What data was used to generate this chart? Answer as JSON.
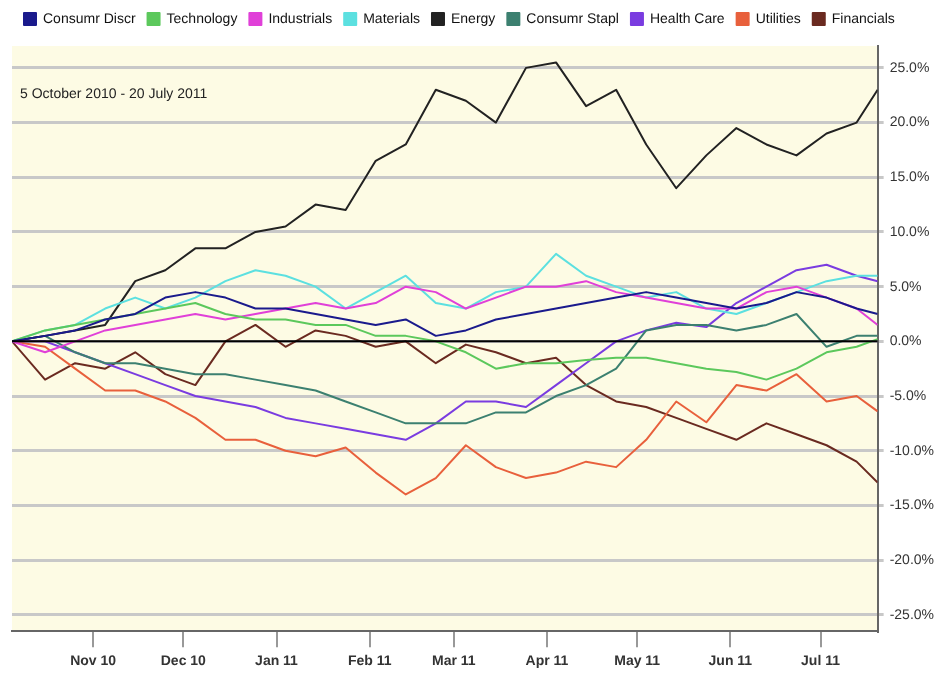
{
  "chart_data": {
    "type": "line",
    "subtitle": "5 October 2010 - 20 July 2011",
    "x": [
      "2010-10-05",
      "2010-10-16",
      "2010-10-26",
      "2010-11-05",
      "2010-11-15",
      "2010-11-25",
      "2010-12-05",
      "2010-12-15",
      "2010-12-25",
      "2011-01-04",
      "2011-01-14",
      "2011-01-24",
      "2011-02-03",
      "2011-02-13",
      "2011-02-23",
      "2011-03-05",
      "2011-03-15",
      "2011-03-25",
      "2011-04-04",
      "2011-04-14",
      "2011-04-24",
      "2011-05-04",
      "2011-05-14",
      "2011-05-24",
      "2011-06-03",
      "2011-06-13",
      "2011-06-23",
      "2011-07-03",
      "2011-07-13",
      "2011-07-20"
    ],
    "series": [
      {
        "color": "#000000",
        "values": [
          0,
          0,
          0,
          0,
          0,
          0,
          0,
          0,
          0,
          0,
          0,
          0,
          0,
          0,
          0,
          0,
          0,
          0,
          0,
          0,
          0,
          0,
          0,
          0,
          0,
          0,
          0,
          0,
          0,
          0
        ]
      },
      {
        "name": "Consumr Discr",
        "color": "#1a1a8c",
        "values": [
          0,
          0.5,
          1,
          2,
          2.5,
          4,
          4.5,
          4,
          3,
          3,
          2.5,
          2,
          1.5,
          2,
          0.5,
          1,
          2,
          2.5,
          3,
          3.5,
          4,
          4.5,
          4,
          3.5,
          3,
          3.5,
          4.5,
          4,
          3,
          2.5
        ]
      },
      {
        "name": "Technology",
        "color": "#5cc85c",
        "values": [
          0,
          1,
          1.5,
          2,
          2.5,
          3,
          3.5,
          2.5,
          2,
          2,
          1.5,
          1.5,
          0.5,
          0.5,
          0,
          -1,
          -2.5,
          -2,
          -2,
          -1.7,
          -1.5,
          -1.5,
          -2,
          -2.5,
          -2.8,
          -3.5,
          -2.5,
          -1,
          -0.5,
          0.2
        ]
      },
      {
        "name": "Industrials",
        "color": "#e040d8",
        "values": [
          0,
          -1,
          0,
          1,
          1.5,
          2,
          2.5,
          2,
          2.5,
          3,
          3.5,
          3,
          3.5,
          5,
          4.5,
          3,
          4,
          5,
          5,
          5.5,
          4.5,
          4,
          3.5,
          3,
          3,
          4.5,
          5,
          4,
          3,
          1.5
        ]
      },
      {
        "name": "Materials",
        "color": "#5ce0e0",
        "values": [
          0,
          1,
          1.5,
          3,
          4,
          3,
          4,
          5.5,
          6.5,
          6,
          5,
          3,
          4.5,
          6,
          3.5,
          3,
          4.5,
          5,
          8,
          6,
          5,
          4,
          4.5,
          3,
          2.5,
          3.5,
          4.5,
          5.5,
          6,
          6
        ]
      },
      {
        "name": "Energy",
        "color": "#222222",
        "values": [
          0,
          0.5,
          1,
          1.5,
          5.5,
          6.5,
          8.5,
          8.5,
          10,
          10.5,
          12.5,
          12,
          16.5,
          18,
          23,
          22,
          20,
          25,
          25.5,
          21.5,
          23,
          18,
          14,
          17,
          19.5,
          18,
          17,
          19,
          20,
          23
        ]
      },
      {
        "name": "Consumr Stapl",
        "color": "#3c8070",
        "values": [
          0,
          0.5,
          -1,
          -2,
          -2,
          -2.5,
          -3,
          -3,
          -3.5,
          -4,
          -4.5,
          -5.5,
          -6.5,
          -7.5,
          -7.5,
          -7.5,
          -6.5,
          -6.5,
          -5,
          -4,
          -2.5,
          1,
          1.5,
          1.5,
          1,
          1.5,
          2.5,
          -0.5,
          0.5,
          0.5
        ]
      },
      {
        "name": "Health Care",
        "color": "#7a3ce0",
        "values": [
          0,
          0,
          -1,
          -2,
          -3,
          -4,
          -5,
          -5.5,
          -6,
          -7,
          -7.5,
          -8,
          -8.5,
          -9,
          -7.5,
          -5.5,
          -5.5,
          -6,
          -4,
          -2,
          0,
          1,
          1.7,
          1.3,
          3.5,
          5,
          6.5,
          7,
          6,
          5.5
        ]
      },
      {
        "name": "Utilities",
        "color": "#e8603c",
        "values": [
          0,
          -0.5,
          -2.5,
          -4.5,
          -4.5,
          -5.5,
          -7,
          -9,
          -9,
          -10,
          -10.5,
          -9.7,
          -12,
          -14,
          -12.5,
          -9.5,
          -11.5,
          -12.5,
          -12,
          -11,
          -11.5,
          -9,
          -5.5,
          -7.4,
          -4,
          -4.5,
          -3,
          -5.5,
          -5,
          -6.4
        ]
      },
      {
        "name": "Financials",
        "color": "#6a2a20",
        "values": [
          0,
          -3.5,
          -2,
          -2.5,
          -1,
          -3,
          -4,
          0,
          1.5,
          -0.5,
          1,
          0.5,
          -0.5,
          0,
          -2,
          -0.3,
          -1,
          -2,
          -1.5,
          -4,
          -5.5,
          -6,
          -7,
          -8,
          -9,
          -7.5,
          -8.5,
          -9.5,
          -11,
          -12.9
        ]
      }
    ],
    "xticks": [
      {
        "value": "2010-11-01",
        "label": "Nov 10"
      },
      {
        "value": "2010-12-01",
        "label": "Dec 10"
      },
      {
        "value": "2011-01-01",
        "label": "Jan 11"
      },
      {
        "value": "2011-02-01",
        "label": "Feb 11"
      },
      {
        "value": "2011-03-01",
        "label": "Mar 11"
      },
      {
        "value": "2011-04-01",
        "label": "Apr 11"
      },
      {
        "value": "2011-05-01",
        "label": "May 11"
      },
      {
        "value": "2011-06-01",
        "label": "Jun 11"
      },
      {
        "value": "2011-07-01",
        "label": "Jul 11"
      }
    ],
    "xlim": [
      "2010-10-05",
      "2011-07-20"
    ],
    "ylim": [
      -26.5,
      27
    ],
    "yticks": [
      {
        "value": -25,
        "label": "-25.0%"
      },
      {
        "value": -20,
        "label": "-20.0%"
      },
      {
        "value": -15,
        "label": "-15.0%"
      },
      {
        "value": -10,
        "label": "-10.0%"
      },
      {
        "value": -5,
        "label": "-5.0%"
      },
      {
        "value": 0,
        "label": "0.0%"
      },
      {
        "value": 5,
        "label": "5.0%"
      },
      {
        "value": 10,
        "label": "10.0%"
      },
      {
        "value": 15,
        "label": "15.0%"
      },
      {
        "value": 20,
        "label": "20.0%"
      },
      {
        "value": 25,
        "label": "25.0%"
      }
    ],
    "grid": "y",
    "legend": "top left",
    "marker": "none",
    "line_style": "solid"
  }
}
